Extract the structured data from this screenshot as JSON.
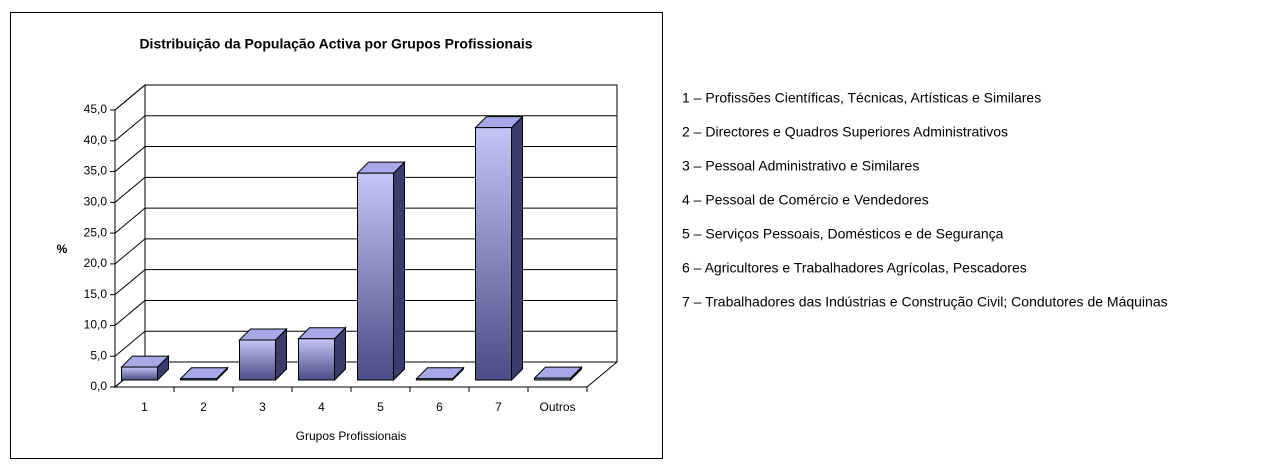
{
  "chart_data": {
    "type": "bar3d",
    "title": "Distribuição da População Activa por Grupos Profissionais",
    "ylabel": "%",
    "xlabel": "Grupos Profissionais",
    "categories": [
      "1",
      "2",
      "3",
      "4",
      "5",
      "6",
      "7",
      "Outros"
    ],
    "values": [
      2.1,
      0.2,
      6.5,
      6.7,
      33.6,
      0.2,
      41.0,
      0.3
    ],
    "ylim": [
      0,
      45
    ],
    "yticks": [
      {
        "value": 0,
        "label": "0,0"
      },
      {
        "value": 5,
        "label": "5,0"
      },
      {
        "value": 10,
        "label": "10,0"
      },
      {
        "value": 15,
        "label": "15,0"
      },
      {
        "value": 20,
        "label": "20,0"
      },
      {
        "value": 25,
        "label": "25,0"
      },
      {
        "value": 30,
        "label": "30,0"
      },
      {
        "value": 35,
        "label": "35,0"
      },
      {
        "value": 40,
        "label": "40,0"
      },
      {
        "value": 45,
        "label": "45,0"
      }
    ],
    "grid": true,
    "notes": [
      "1 – Profissões Científicas, Técnicas, Artísticas e Similares",
      "2 – Directores e Quadros Superiores Administrativos",
      "3 – Pessoal Administrativo e Similares",
      "4 – Pessoal de Comércio e Vendedores",
      "5 – Serviços Pessoais, Domésticos e de Segurança",
      "6 – Agricultores e Trabalhadores Agrícolas, Pescadores",
      "7 – Trabalhadores das Indústrias e Construção Civil; Condutores de Máquinas"
    ]
  }
}
